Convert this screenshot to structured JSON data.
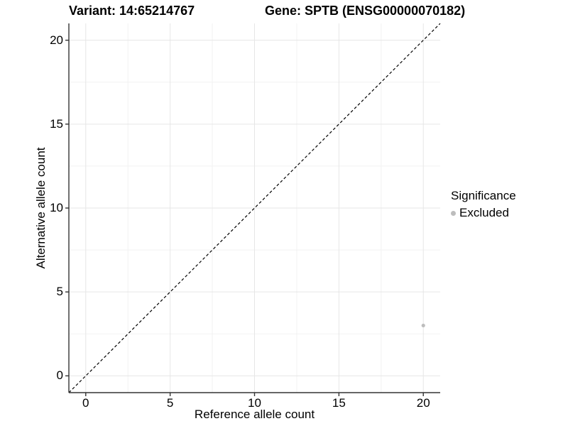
{
  "title": {
    "variant": "Variant: 14:65214767",
    "gene": "Gene: SPTB (ENSG00000070182)"
  },
  "legend": {
    "title": "Significance",
    "items": [
      {
        "label": "Excluded",
        "color": "#bdbdbd"
      }
    ]
  },
  "chart_data": {
    "type": "scatter",
    "title": "Variant: 14:65214767 | Gene: SPTB (ENSG00000070182)",
    "xlabel": "Reference allele count",
    "ylabel": "Alternative allele count",
    "xlim": [
      -1,
      21
    ],
    "ylim": [
      -1,
      21
    ],
    "x_ticks": [
      0,
      5,
      10,
      15,
      20
    ],
    "y_ticks": [
      0,
      5,
      10,
      15,
      20
    ],
    "grid": true,
    "legend_position": "right",
    "legend_title": "Significance",
    "series": [
      {
        "name": "Excluded",
        "color": "#bdbdbd",
        "points": [
          {
            "x": 20,
            "y": 3
          }
        ]
      }
    ],
    "reference_line": {
      "kind": "identity y=x",
      "style": "dashed",
      "color": "#000000"
    },
    "colors": {
      "axis_line": "#333333",
      "tick_mark": "#333333",
      "grid_major": "#e6e6e6",
      "grid_minor": "#f2f2f2",
      "background": "#ffffff"
    }
  }
}
